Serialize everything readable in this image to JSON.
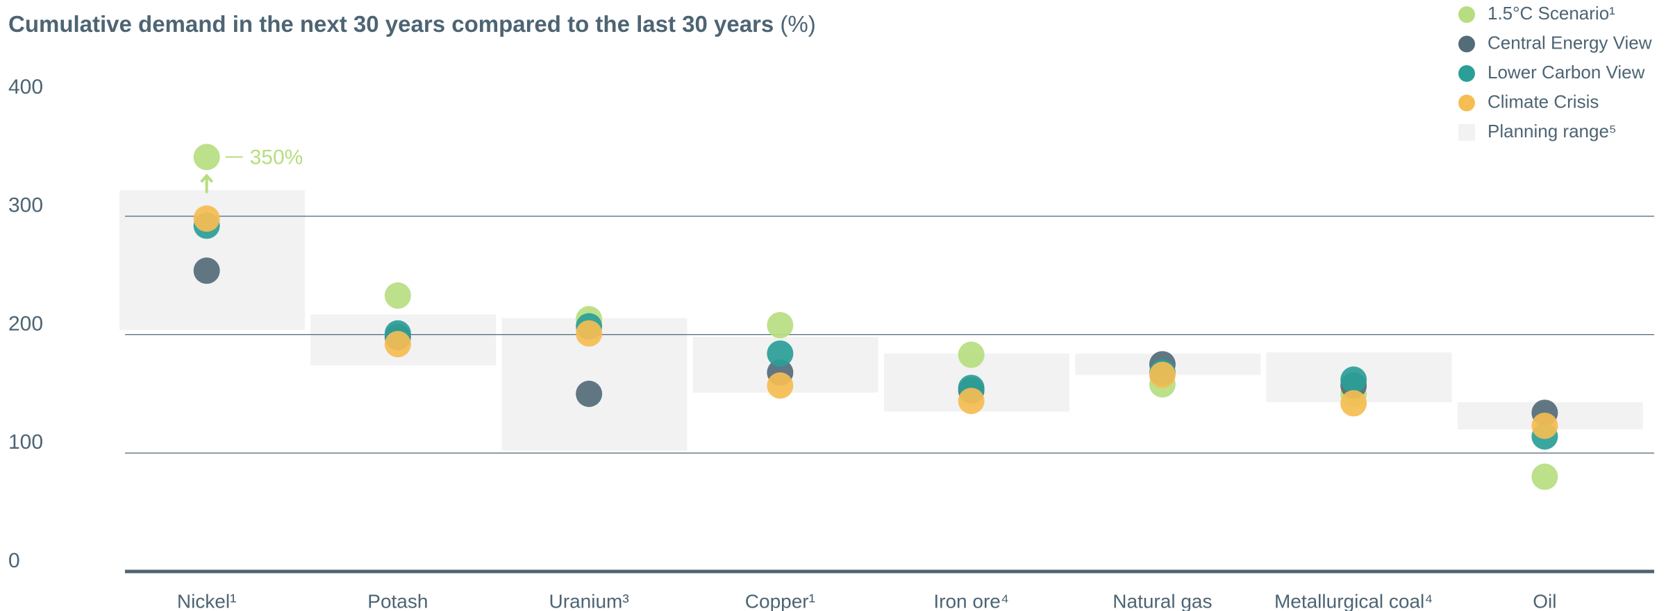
{
  "chart_data": {
    "type": "dot_range",
    "title": "Cumulative demand in the next 30 years compared to the last 30 years",
    "title_unit": "(%)",
    "categories": [
      "Nickel¹",
      "Potash",
      "Uranium³",
      "Copper¹",
      "Iron ore⁴",
      "Natural gas",
      "Metallurgical coal⁴",
      "Oil"
    ],
    "range": {
      "name": "Planning range⁵",
      "color": "#f2f2f2",
      "low": [
        204,
        174,
        102,
        151,
        135,
        166,
        143,
        120
      ],
      "high": [
        322,
        217,
        214,
        198,
        184,
        184,
        185,
        143
      ]
    },
    "series": [
      {
        "name": "1.5°C Scenario¹",
        "color": "#b7dd80",
        "values": [
          350,
          233,
          213,
          208,
          183,
          158,
          150,
          80
        ],
        "value_labels": [
          "350%",
          null,
          null,
          null,
          null,
          null,
          null,
          null
        ]
      },
      {
        "name": "Central Energy View",
        "color": "#546b7a",
        "values": [
          254,
          198,
          150,
          168,
          153,
          175,
          157,
          134
        ]
      },
      {
        "name": "Lower Carbon View",
        "color": "#2a9e97",
        "values": [
          292,
          201,
          207,
          184,
          155,
          168,
          162,
          114
        ]
      },
      {
        "name": "Climate Crisis",
        "color": "#f5bd52",
        "values": [
          298,
          192,
          201,
          157,
          144,
          166,
          142,
          123
        ]
      }
    ],
    "ylim": [
      0,
      400
    ],
    "yticks": [
      0,
      100,
      200,
      300,
      400
    ],
    "grid": true
  }
}
